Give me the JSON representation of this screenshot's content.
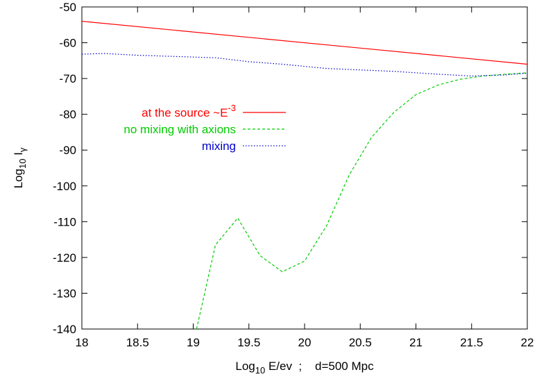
{
  "chart_data": {
    "type": "line",
    "xlabel": {
      "prefix": "Log",
      "sub": "10",
      "rest": " E/ev  ;    d=500 Mpc"
    },
    "ylabel": {
      "prefix": "Log",
      "sub": "10",
      "rest": " I",
      "sub2": "γ"
    },
    "xlim": [
      18,
      22
    ],
    "ylim": [
      -140,
      -50
    ],
    "xticks": [
      {
        "value": 18,
        "label": "18"
      },
      {
        "value": 18.5,
        "label": "18.5"
      },
      {
        "value": 19,
        "label": "19"
      },
      {
        "value": 19.5,
        "label": "19.5"
      },
      {
        "value": 20,
        "label": "20"
      },
      {
        "value": 20.5,
        "label": "20.5"
      },
      {
        "value": 21,
        "label": "21"
      },
      {
        "value": 21.5,
        "label": "21.5"
      },
      {
        "value": 22,
        "label": "22"
      }
    ],
    "yticks": [
      {
        "value": -50,
        "label": "-50"
      },
      {
        "value": -60,
        "label": "-60"
      },
      {
        "value": -70,
        "label": "-70"
      },
      {
        "value": -80,
        "label": "-80"
      },
      {
        "value": -90,
        "label": "-90"
      },
      {
        "value": -100,
        "label": "-100"
      },
      {
        "value": -110,
        "label": "-110"
      },
      {
        "value": -120,
        "label": "-120"
      },
      {
        "value": -130,
        "label": "-130"
      },
      {
        "value": -140,
        "label": "-140"
      }
    ],
    "grid": false,
    "legend_position": "left, upper-middle",
    "series": [
      {
        "name": "at the source ~E",
        "name_sup": "-3",
        "color": "#ff0000",
        "dash": "solid",
        "x": [
          18,
          22
        ],
        "y": [
          -54,
          -66
        ]
      },
      {
        "name": "no mixing with axions",
        "color": "#00cc00",
        "dash": "dashed",
        "x": [
          19.03,
          19.2,
          19.4,
          19.6,
          19.8,
          20.0,
          20.2,
          20.4,
          20.6,
          20.8,
          21.0,
          21.2,
          21.4,
          21.6,
          21.8,
          22.0
        ],
        "y": [
          -140,
          -116.5,
          -109,
          -119.5,
          -124,
          -121,
          -111,
          -97,
          -86.5,
          -79.5,
          -74.5,
          -71.8,
          -70.2,
          -69.3,
          -68.8,
          -68.4
        ]
      },
      {
        "name": "mixing",
        "color": "#0000cc",
        "dash": "dotted",
        "x": [
          18.0,
          18.2,
          18.5,
          18.8,
          19.0,
          19.2,
          19.5,
          19.8,
          20.0,
          20.2,
          20.5,
          20.8,
          21.0,
          21.2,
          21.5,
          21.8,
          22.0
        ],
        "y": [
          -63.2,
          -63.0,
          -63.5,
          -63.8,
          -64.0,
          -64.2,
          -65.3,
          -66.0,
          -66.6,
          -67.2,
          -67.6,
          -68.0,
          -68.4,
          -68.8,
          -69.3,
          -69.0,
          -68.5
        ]
      }
    ]
  }
}
